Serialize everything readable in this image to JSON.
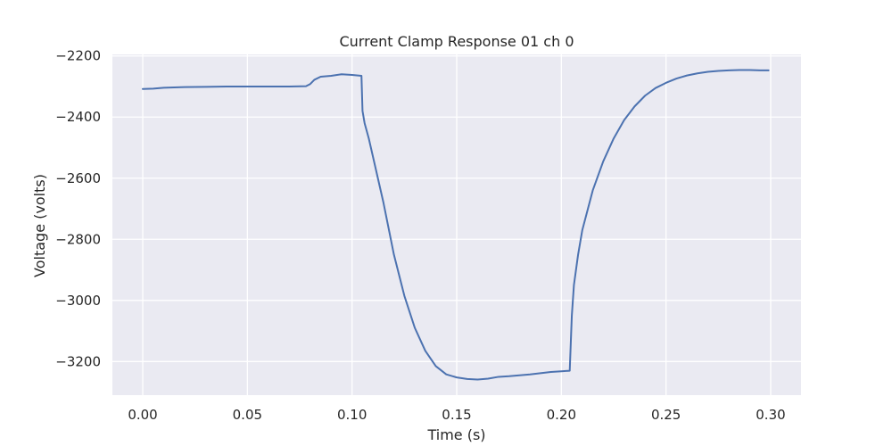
{
  "chart_data": {
    "type": "line",
    "title": "Current Clamp Response 01 ch 0",
    "xlabel": "Time (s)",
    "ylabel": "Voltage (volts)",
    "xlim": [
      -0.0145,
      0.3145
    ],
    "ylim": [
      -3310,
      -2195
    ],
    "xticks": [
      0.0,
      0.05,
      0.1,
      0.15,
      0.2,
      0.25,
      0.3
    ],
    "xtick_labels": [
      "0.00",
      "0.05",
      "0.10",
      "0.15",
      "0.20",
      "0.25",
      "0.30"
    ],
    "yticks": [
      -3200,
      -3000,
      -2800,
      -2600,
      -2400,
      -2200
    ],
    "ytick_labels": [
      "−3200",
      "−3000",
      "−2800",
      "−2600",
      "−2400",
      "−2200"
    ],
    "grid": true,
    "background": "#eaeaf2",
    "series": [
      {
        "color": "#4c72b0",
        "x": [
          0.0,
          0.005,
          0.01,
          0.02,
          0.03,
          0.04,
          0.05,
          0.06,
          0.07,
          0.078,
          0.08,
          0.082,
          0.085,
          0.09,
          0.095,
          0.1,
          0.1045,
          0.105,
          0.106,
          0.108,
          0.11,
          0.115,
          0.12,
          0.125,
          0.13,
          0.135,
          0.14,
          0.145,
          0.15,
          0.155,
          0.16,
          0.165,
          0.17,
          0.175,
          0.18,
          0.185,
          0.19,
          0.195,
          0.2,
          0.204,
          0.2045,
          0.205,
          0.206,
          0.208,
          0.21,
          0.215,
          0.22,
          0.225,
          0.23,
          0.235,
          0.24,
          0.245,
          0.25,
          0.255,
          0.26,
          0.265,
          0.27,
          0.275,
          0.28,
          0.285,
          0.29,
          0.295,
          0.299
        ],
        "y": [
          -2308,
          -2307,
          -2304,
          -2302,
          -2301,
          -2300,
          -2300,
          -2300,
          -2300,
          -2299,
          -2292,
          -2278,
          -2268,
          -2265,
          -2260,
          -2262,
          -2265,
          -2380,
          -2420,
          -2470,
          -2530,
          -2680,
          -2850,
          -2985,
          -3090,
          -3165,
          -3215,
          -3242,
          -3252,
          -3257,
          -3259,
          -3256,
          -3250,
          -3248,
          -3245,
          -3242,
          -3238,
          -3234,
          -3232,
          -3230,
          -3140,
          -3050,
          -2950,
          -2850,
          -2770,
          -2640,
          -2545,
          -2470,
          -2410,
          -2365,
          -2330,
          -2305,
          -2288,
          -2274,
          -2264,
          -2257,
          -2252,
          -2249,
          -2247,
          -2246,
          -2246,
          -2247,
          -2247
        ]
      }
    ]
  }
}
